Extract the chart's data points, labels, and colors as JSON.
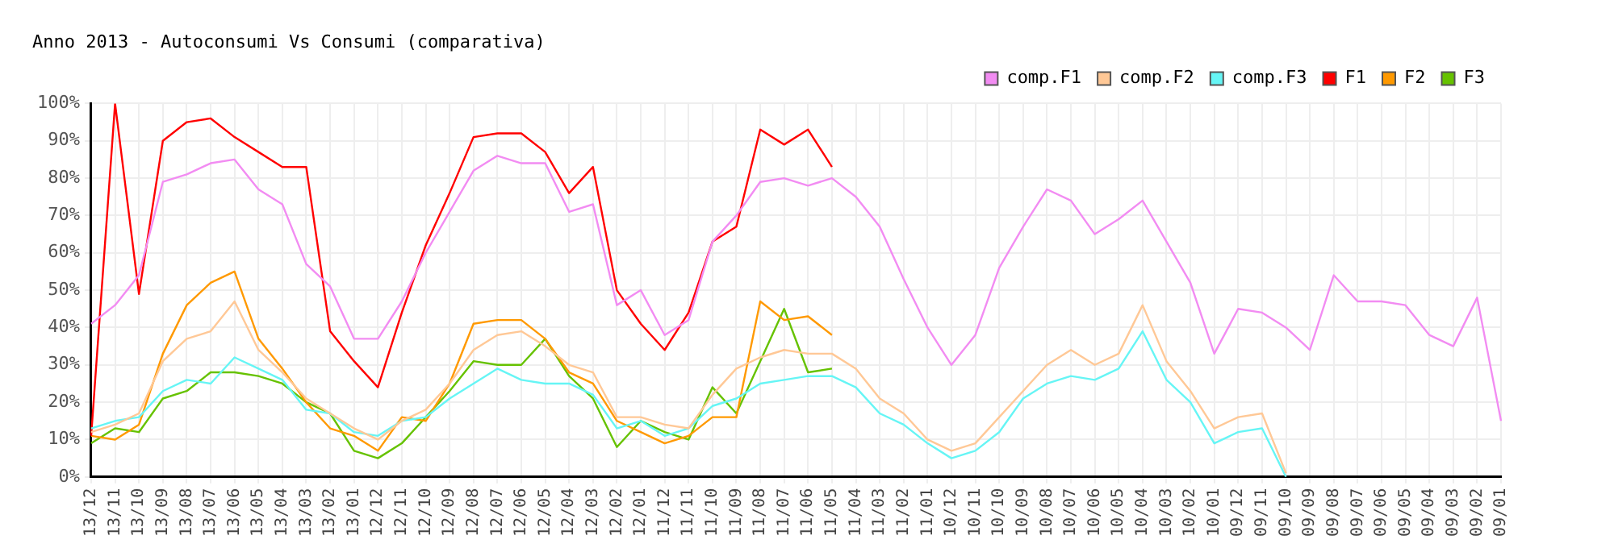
{
  "chart_data": {
    "type": "line",
    "title": "Anno 2013 - Autoconsumi Vs Consumi (comparativa)",
    "categories": [
      "13/12",
      "13/11",
      "13/10",
      "13/09",
      "13/08",
      "13/07",
      "13/06",
      "13/05",
      "13/04",
      "13/03",
      "13/02",
      "13/01",
      "12/12",
      "12/11",
      "12/10",
      "12/09",
      "12/08",
      "12/07",
      "12/06",
      "12/05",
      "12/04",
      "12/03",
      "12/02",
      "12/01",
      "11/12",
      "11/11",
      "11/10",
      "11/09",
      "11/08",
      "11/07",
      "11/06",
      "11/05",
      "11/04",
      "11/03",
      "11/02",
      "11/01",
      "10/12",
      "10/11",
      "10/10",
      "10/09",
      "10/08",
      "10/07",
      "10/06",
      "10/05",
      "10/04",
      "10/03",
      "10/02",
      "10/01",
      "09/12",
      "09/11",
      "09/10",
      "09/09",
      "09/08",
      "09/07",
      "09/06",
      "09/05",
      "09/04",
      "09/03",
      "09/02",
      "09/01"
    ],
    "series": [
      {
        "name": "comp.F1",
        "color": "#f28cf2",
        "values": [
          41,
          46,
          54,
          79,
          81,
          84,
          85,
          77,
          73,
          57,
          51,
          37,
          37,
          47,
          60,
          71,
          82,
          86,
          84,
          84,
          71,
          73,
          46,
          50,
          38,
          42,
          63,
          70,
          79,
          80,
          78,
          80,
          75,
          67,
          53,
          40,
          30,
          38,
          56,
          67,
          77,
          74,
          65,
          69,
          74,
          63,
          52,
          33,
          45,
          44,
          40,
          34,
          54,
          47,
          47,
          46,
          38,
          35,
          48,
          15
        ]
      },
      {
        "name": "comp.F2",
        "color": "#ffc896",
        "values": [
          12,
          14,
          17,
          31,
          37,
          39,
          47,
          34,
          28,
          21,
          17,
          13,
          10,
          15,
          18,
          25,
          34,
          38,
          39,
          35,
          30,
          28,
          16,
          16,
          14,
          13,
          22,
          29,
          32,
          34,
          33,
          33,
          29,
          21,
          17,
          10,
          7,
          9,
          16,
          23,
          30,
          34,
          30,
          33,
          46,
          31,
          23,
          13,
          16,
          17,
          1,
          null,
          null,
          null,
          null,
          null,
          null,
          null,
          null,
          null
        ]
      },
      {
        "name": "comp.F3",
        "color": "#66f5f5",
        "values": [
          13,
          15,
          16,
          23,
          26,
          25,
          32,
          29,
          26,
          18,
          17,
          12,
          11,
          15,
          16,
          21,
          25,
          29,
          26,
          25,
          25,
          22,
          13,
          15,
          11,
          13,
          19,
          21,
          25,
          26,
          27,
          27,
          24,
          17,
          14,
          9,
          5,
          7,
          12,
          21,
          25,
          27,
          26,
          29,
          39,
          26,
          20,
          9,
          12,
          13,
          0,
          null,
          null,
          null,
          null,
          null,
          null,
          null,
          null,
          null
        ]
      },
      {
        "name": "F1",
        "color": "#ff0000",
        "values": [
          11,
          100,
          49,
          90,
          95,
          96,
          91,
          87,
          83,
          83,
          39,
          31,
          24,
          44,
          62,
          76,
          91,
          92,
          92,
          87,
          76,
          83,
          50,
          41,
          34,
          44,
          63,
          67,
          93,
          89,
          93,
          83,
          null,
          null,
          null,
          null,
          null,
          null,
          null,
          null,
          null,
          null,
          null,
          null,
          null,
          null,
          null,
          null,
          null,
          null,
          null,
          null,
          null,
          null,
          null,
          null,
          null,
          null,
          null,
          null
        ]
      },
      {
        "name": "F2",
        "color": "#ff9900",
        "values": [
          11,
          10,
          14,
          33,
          46,
          52,
          55,
          37,
          29,
          20,
          13,
          11,
          7,
          16,
          15,
          25,
          41,
          42,
          42,
          37,
          28,
          25,
          15,
          12,
          9,
          11,
          16,
          16,
          47,
          42,
          43,
          38,
          null,
          null,
          null,
          null,
          null,
          null,
          null,
          null,
          null,
          null,
          null,
          null,
          null,
          null,
          null,
          null,
          null,
          null,
          null,
          null,
          null,
          null,
          null,
          null,
          null,
          null,
          null,
          null
        ]
      },
      {
        "name": "F3",
        "color": "#66c200",
        "values": [
          9,
          13,
          12,
          21,
          23,
          28,
          28,
          27,
          25,
          20,
          17,
          7,
          5,
          9,
          16,
          23,
          31,
          30,
          30,
          37,
          27,
          21,
          8,
          15,
          12,
          10,
          24,
          17,
          31,
          45,
          28,
          29,
          null,
          null,
          null,
          null,
          null,
          null,
          null,
          null,
          null,
          null,
          null,
          null,
          null,
          null,
          null,
          null,
          null,
          null,
          null,
          null,
          null,
          null,
          null,
          null,
          null,
          null,
          null,
          null
        ]
      }
    ],
    "ylim": [
      0,
      100
    ],
    "yticks": [
      {
        "value": 0,
        "label": "0%"
      },
      {
        "value": 10,
        "label": "10%"
      },
      {
        "value": 20,
        "label": "20%"
      },
      {
        "value": 30,
        "label": "30%"
      },
      {
        "value": 40,
        "label": "40%"
      },
      {
        "value": 50,
        "label": "50%"
      },
      {
        "value": 60,
        "label": "60%"
      },
      {
        "value": 70,
        "label": "70%"
      },
      {
        "value": 80,
        "label": "80%"
      },
      {
        "value": 90,
        "label": "90%"
      },
      {
        "value": 100,
        "label": "100%"
      }
    ],
    "grid": true,
    "legend": "top right",
    "marker": "none",
    "line_style": "solid"
  }
}
